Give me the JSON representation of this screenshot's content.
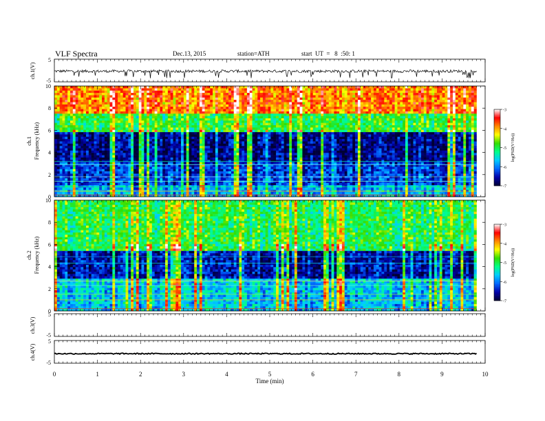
{
  "header": {
    "title": "VLF Spectra",
    "date": "Dec.13, 2015",
    "station": "station=ATH",
    "start": "start  UT  =   8  :50: 1"
  },
  "chart_data": [
    {
      "type": "line",
      "ylabel": "ch.1(V)",
      "xlim": [
        0,
        10
      ],
      "ylim": [
        -5,
        5
      ],
      "y_ticklabels": [
        "5",
        "-5"
      ],
      "baseline": -0.3,
      "noise_amplitude": 0.6,
      "spikes": "frequent negative spikes to about -3"
    },
    {
      "type": "heatmap",
      "ylabel": "ch.1\nFrequency (kHz)",
      "ylim": [
        0,
        10
      ],
      "y_ticks": [
        0,
        2,
        4,
        6,
        8,
        10
      ],
      "xlim": [
        0,
        9.8
      ],
      "colorbar": {
        "label": "log(PSD(V²/Hz))",
        "range": [
          -7,
          -3
        ],
        "ticks": [
          -7,
          -6,
          -5,
          -4,
          -3
        ],
        "colormap": [
          "#000033",
          "#0000aa",
          "#0066ff",
          "#00ccff",
          "#00ff88",
          "#33dd00",
          "#ffff00",
          "#ff8800",
          "#ff0000",
          "#ffffff"
        ]
      },
      "bands": [
        {
          "freq_range": [
            0,
            1.0
          ],
          "level": -5.8
        },
        {
          "freq_range": [
            1.0,
            3.2
          ],
          "level": -6.3
        },
        {
          "freq_range": [
            3.2,
            5.8
          ],
          "level": -6.7
        },
        {
          "freq_range": [
            5.8,
            7.5
          ],
          "level": -5.0
        },
        {
          "freq_range": [
            7.5,
            10
          ],
          "level": -3.9
        }
      ]
    },
    {
      "type": "heatmap",
      "ylabel": "ch.2\nFrequency (kHz)",
      "ylim": [
        0,
        10
      ],
      "y_ticks": [
        0,
        2,
        4,
        6,
        8,
        10
      ],
      "xlim": [
        0,
        9.8
      ],
      "colorbar": {
        "label": "log(PSD(V²/Hz))",
        "range": [
          -7,
          -3
        ],
        "ticks": [
          -7,
          -6,
          -5,
          -4,
          -3
        ]
      },
      "bands": [
        {
          "freq_range": [
            0,
            1.5
          ],
          "level": -5.7
        },
        {
          "freq_range": [
            1.5,
            3.0
          ],
          "level": -5.6
        },
        {
          "freq_range": [
            3.0,
            5.5
          ],
          "level": -6.5
        },
        {
          "freq_range": [
            5.5,
            10
          ],
          "level": -5.0
        }
      ]
    },
    {
      "type": "line",
      "ylabel": "ch.3(V)",
      "ylim": [
        -5,
        5
      ],
      "y_ticklabels": [
        "5",
        "-5"
      ],
      "empty": true
    },
    {
      "type": "line",
      "ylabel": "ch.4(V)",
      "ylim": [
        -5,
        5
      ],
      "y_ticklabels": [
        "5",
        "-5"
      ],
      "baseline": -0.8,
      "noise_amplitude": 0.25
    }
  ],
  "x_axis": {
    "label": "Time (min)",
    "xlim": [
      0,
      10
    ],
    "ticks": [
      0,
      1,
      2,
      3,
      4,
      5,
      6,
      7,
      8,
      9,
      10
    ]
  }
}
